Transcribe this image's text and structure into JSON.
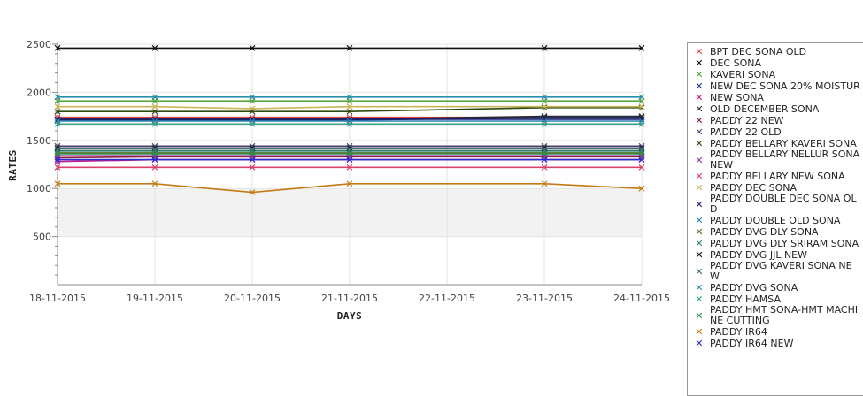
{
  "chart_data": {
    "type": "line",
    "title": "",
    "xlabel": "DAYS",
    "ylabel": "RATES",
    "ylim": [
      0,
      2500
    ],
    "y_ticks": [
      500,
      1000,
      1500,
      2000,
      2500
    ],
    "y_minor_step": 100,
    "categories": [
      "18-11-2015",
      "19-11-2015",
      "20-11-2015",
      "21-11-2015",
      "22-11-2015",
      "23-11-2015",
      "24-11-2015"
    ],
    "grid": true,
    "legend_position": "right",
    "band": {
      "from": 500,
      "to": 1000,
      "color": "#f2f2f2"
    },
    "series": [
      {
        "name": "BPT DEC SONA OLD",
        "color": "#e8453c",
        "values": [
          1740,
          1740,
          1740,
          1740,
          null,
          1740,
          1740
        ]
      },
      {
        "name": "DEC SONA",
        "color": "#111111",
        "values": [
          2460,
          2460,
          2460,
          2460,
          null,
          2460,
          2460
        ]
      },
      {
        "name": "KAVERI SONA",
        "color": "#58a83e",
        "values": [
          1910,
          1910,
          1910,
          1910,
          null,
          1910,
          1910
        ]
      },
      {
        "name": "NEW DEC SONA 20% MOISTUR",
        "color": "#1f3a8a",
        "values": [
          1710,
          1710,
          1710,
          1710,
          null,
          1740,
          1740
        ]
      },
      {
        "name": "NEW SONA",
        "color": "#c21b8c",
        "values": [
          1280,
          1300,
          1300,
          1300,
          null,
          1300,
          1300
        ]
      },
      {
        "name": "OLD DECEMBER SONA",
        "color": "#2a2a2a",
        "values": [
          1720,
          1720,
          1720,
          1720,
          null,
          1750,
          1750
        ]
      },
      {
        "name": "PADDY 22 NEW",
        "color": "#8e1d3b",
        "values": [
          1320,
          1330,
          1330,
          1330,
          null,
          1330,
          1330
        ]
      },
      {
        "name": "PADDY 22 OLD",
        "color": "#4b3f72",
        "values": [
          1440,
          1440,
          1440,
          1440,
          null,
          1440,
          1440
        ]
      },
      {
        "name": "PADDY BELLARY KAVERI SONA",
        "color": "#2d4a14",
        "values": [
          1800,
          1800,
          1800,
          1800,
          null,
          1840,
          1840
        ]
      },
      {
        "name": "PADDY BELLARY NELLUR SONA NEW",
        "color": "#9b2bb5",
        "values": [
          1340,
          1340,
          1340,
          1340,
          null,
          1340,
          1340
        ]
      },
      {
        "name": "PADDY BELLARY NEW SONA",
        "color": "#d9436b",
        "values": [
          1220,
          1220,
          1220,
          1220,
          null,
          1220,
          1220
        ]
      },
      {
        "name": "PADDY DEC SONA",
        "color": "#c9b458",
        "values": [
          1850,
          1850,
          1830,
          1850,
          null,
          1850,
          1850
        ]
      },
      {
        "name": "PADDY DOUBLE DEC SONA OLD",
        "color": "#141a6b",
        "values": [
          1720,
          1720,
          1720,
          1720,
          null,
          1720,
          1720
        ]
      },
      {
        "name": "PADDY DOUBLE OLD SONA",
        "color": "#2f7fb5",
        "values": [
          1700,
          1700,
          1700,
          1700,
          null,
          1700,
          1700
        ]
      },
      {
        "name": "PADDY DVG DLY SONA",
        "color": "#5a6b1f",
        "values": [
          1370,
          1370,
          1370,
          1370,
          null,
          1370,
          1370
        ]
      },
      {
        "name": "PADDY DVG DLY SRIRAM SONA",
        "color": "#2e7d6b",
        "values": [
          1390,
          1390,
          1390,
          1390,
          null,
          1390,
          1390
        ]
      },
      {
        "name": "PADDY DVG JJL NEW",
        "color": "#000000",
        "values": [
          1420,
          1420,
          1420,
          1420,
          null,
          1420,
          1420
        ]
      },
      {
        "name": "PADDY DVG KAVERI SONA NEW",
        "color": "#3f6b73",
        "values": [
          1410,
          1410,
          1410,
          1410,
          null,
          1410,
          1410
        ]
      },
      {
        "name": "PADDY DVG SONA",
        "color": "#2a8fa8",
        "values": [
          1950,
          1950,
          1950,
          1950,
          null,
          1950,
          1950
        ]
      },
      {
        "name": "PADDY HAMSA",
        "color": "#3aa08a",
        "values": [
          1670,
          1670,
          1670,
          1670,
          null,
          1670,
          1670
        ]
      },
      {
        "name": "PADDY HMT SONA-HMT MACHINE CUTTING",
        "color": "#2f8f4f",
        "values": [
          1360,
          1360,
          1360,
          1360,
          null,
          1360,
          1360
        ]
      },
      {
        "name": "PADDY IR64",
        "color": "#c47a14",
        "values": [
          1050,
          1050,
          960,
          1050,
          null,
          1050,
          1000
        ]
      },
      {
        "name": "PADDY IR64 NEW",
        "color": "#2b2bd4",
        "values": [
          1300,
          1300,
          1300,
          1300,
          null,
          1300,
          1300
        ]
      }
    ]
  }
}
